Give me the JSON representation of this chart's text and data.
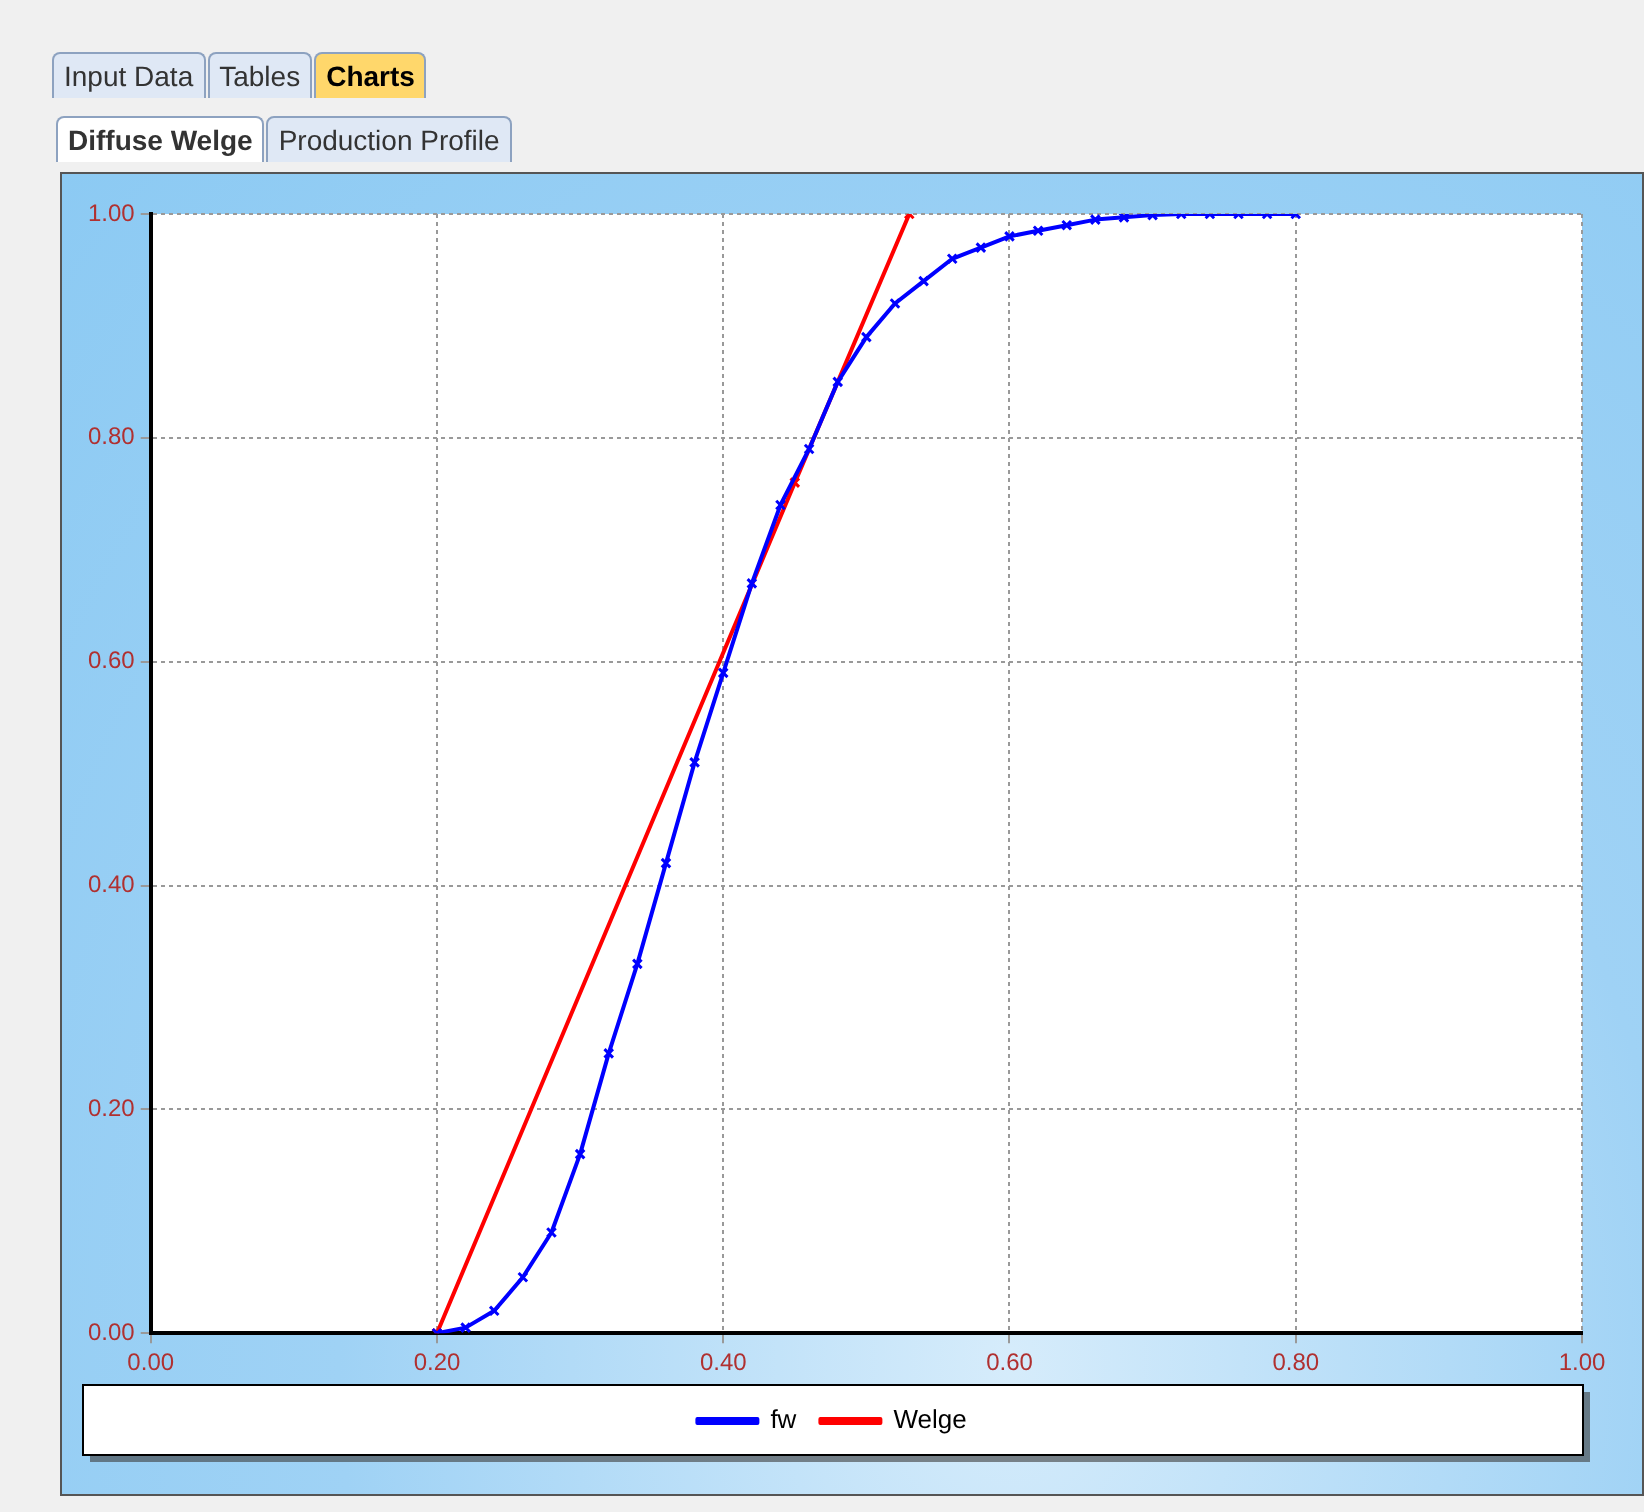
{
  "chart_data": {
    "type": "line",
    "annotations": [
      "Input Data",
      "Tables",
      "Charts",
      "Diffuse Welge",
      "Production Profile"
    ],
    "xlim": [
      0,
      1
    ],
    "xticks": [
      {
        "value": 0,
        "label": "0.00"
      },
      {
        "value": 0.2,
        "label": "0.20"
      },
      {
        "value": 0.4,
        "label": "0.40"
      },
      {
        "value": 0.6,
        "label": "0.60"
      },
      {
        "value": 0.8,
        "label": "0.80"
      },
      {
        "value": 1,
        "label": "1.00"
      }
    ],
    "ylim": [
      0,
      1
    ],
    "yticks": [
      {
        "value": 0,
        "label": "0.00"
      },
      {
        "value": 0.2,
        "label": "0.20"
      },
      {
        "value": 0.4,
        "label": "0.40"
      },
      {
        "value": 0.6,
        "label": "0.60"
      },
      {
        "value": 0.8,
        "label": "0.80"
      },
      {
        "value": 1,
        "label": "1.00"
      }
    ],
    "grid": true,
    "legend": "bottom",
    "marker": "cross",
    "line_style": "solid",
    "series": [
      {
        "name": "fw",
        "color": "#0000ff",
        "x": [
          0.2,
          0.22,
          0.24,
          0.26,
          0.28,
          0.3,
          0.32,
          0.34,
          0.36,
          0.38,
          0.4,
          0.42,
          0.44,
          0.46,
          0.48,
          0.5,
          0.52,
          0.54,
          0.56,
          0.58,
          0.6,
          0.62,
          0.64,
          0.66,
          0.68,
          0.7,
          0.72,
          0.74,
          0.76,
          0.78,
          0.8
        ],
        "values": [
          0,
          0.005,
          0.02,
          0.05,
          0.09,
          0.16,
          0.25,
          0.33,
          0.42,
          0.51,
          0.59,
          0.67,
          0.74,
          0.79,
          0.85,
          0.89,
          0.92,
          0.94,
          0.96,
          0.97,
          0.98,
          0.985,
          0.99,
          0.995,
          0.997,
          0.999,
          1,
          1,
          1,
          1,
          1
        ]
      },
      {
        "name": "Welge",
        "color": "#ff0000",
        "x": [
          0.2,
          0.45,
          0.53
        ],
        "values": [
          0,
          0.76,
          1
        ]
      }
    ]
  }
}
